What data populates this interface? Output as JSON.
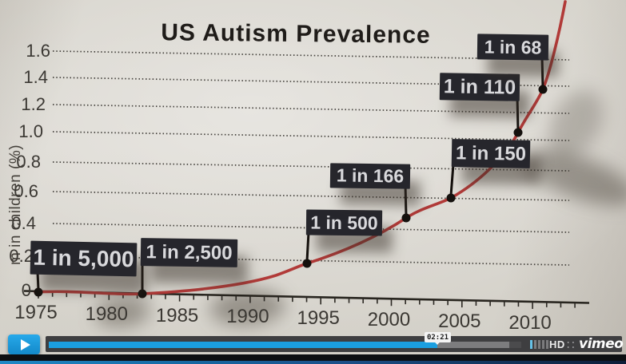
{
  "chart_data": {
    "type": "line",
    "title": "US Autism Prevalence",
    "xlabel": "",
    "ylabel": "m in children (%)",
    "x_ticks": [
      "1975",
      "1980",
      "1985",
      "1990",
      "1995",
      "2000",
      "2005",
      "2010"
    ],
    "y_ticks": [
      "0",
      "0.2",
      "0.4",
      "0.6",
      "0.8",
      "1.0",
      "1.2",
      "1.4",
      "1.6"
    ],
    "xlim": [
      1975,
      2013
    ],
    "ylim": [
      0,
      1.7
    ],
    "grid": "dotted horizontal",
    "legend": "none",
    "line_color": "#b13a38",
    "series": [
      {
        "name": "US autism prevalence",
        "points": [
          {
            "year": 1975,
            "pct": 0.02,
            "label": "1 in 5,000"
          },
          {
            "year": 1982,
            "pct": 0.04,
            "label": "1 in 2,500"
          },
          {
            "year": 1994,
            "pct": 0.2,
            "label": "1 in 500"
          },
          {
            "year": 2001,
            "pct": 0.6,
            "label": "1 in 166"
          },
          {
            "year": 2004,
            "pct": 0.67,
            "label": "1 in 150"
          },
          {
            "year": 2009,
            "pct": 0.91,
            "label": "1 in 110"
          },
          {
            "year": 2011,
            "pct": 1.47,
            "label": "1 in 68"
          }
        ]
      }
    ]
  },
  "player": {
    "time_tooltip": "02:21",
    "hd_badge": "HD",
    "brand": "vimeo",
    "dots_icon_glyph": "∷",
    "volume_bars": {
      "total": 5,
      "active": 1
    },
    "colors": {
      "accent_blue": "#1b9fe0",
      "bar_bg": "#3e3e40",
      "bottom_strip_blue": "#1668a2"
    }
  },
  "colors": {
    "paper": "#d8d5cd",
    "flag_bg": "#26262c",
    "flag_text": "#d9d9dc",
    "axis_text": "#3b3833",
    "line_red": "#b13a38"
  }
}
